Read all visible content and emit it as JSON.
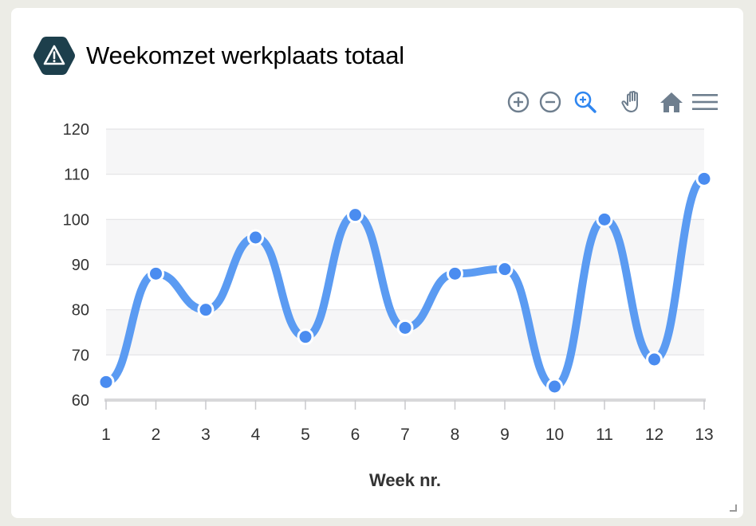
{
  "widget": {
    "title": "Weekomzet werkplaats totaal",
    "icon": "warning-icon"
  },
  "toolbar": {
    "buttons": [
      "zoom-in-icon",
      "zoom-out-icon",
      "selection-zoom-icon",
      "pan-icon",
      "home-icon",
      "menu-icon"
    ]
  },
  "colors": {
    "line": "#5b9bf2",
    "point": "#4a8cf0",
    "icon_bg": "#1d3f4c",
    "toolbar_icon": "#6e7e8e",
    "toolbar_active": "#2f86f0",
    "band": "#f6f6f7",
    "grid": "#e3e3e6"
  },
  "chart_data": {
    "type": "line",
    "curve": "smooth",
    "x": [
      1,
      2,
      3,
      4,
      5,
      6,
      7,
      8,
      9,
      10,
      11,
      12,
      13
    ],
    "series": [
      {
        "values": [
          64,
          88,
          80,
          96,
          74,
          101,
          76,
          88,
          89,
          63,
          100,
          69,
          109
        ]
      }
    ],
    "xlabel": "Week nr.",
    "ylabel": "",
    "ylim": [
      60,
      120
    ],
    "yticks": [
      60,
      70,
      80,
      90,
      100,
      110,
      120
    ],
    "xticks": [
      "1",
      "2",
      "3",
      "4",
      "5",
      "6",
      "7",
      "8",
      "9",
      "10",
      "11",
      "12",
      "13"
    ],
    "grid": true,
    "banded_rows": true,
    "markers": true
  }
}
